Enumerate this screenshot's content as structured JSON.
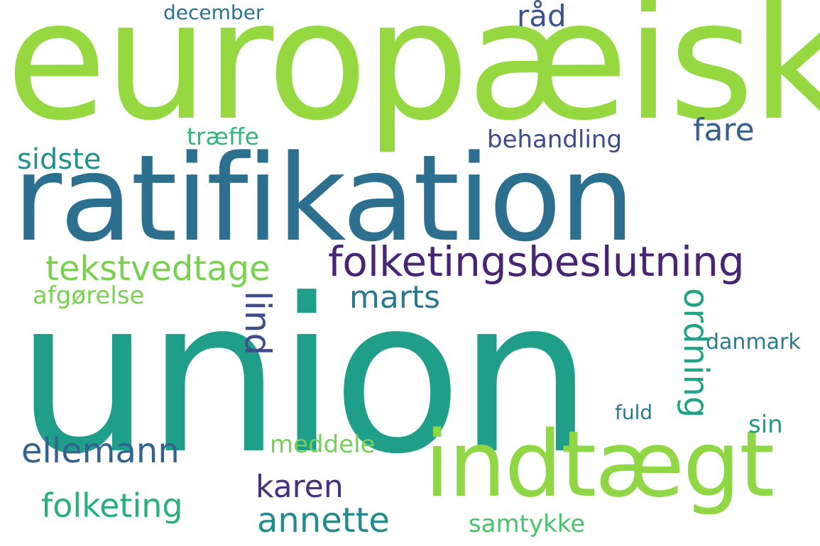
{
  "words": [
    {
      "text": "europæisk",
      "color": "#95d840"
    },
    {
      "text": "ratifikation",
      "color": "#2d6f8e"
    },
    {
      "text": "union",
      "color": "#1f9e89"
    },
    {
      "text": "indtægt",
      "color": "#8fd744"
    },
    {
      "text": "folketingsbeslutning",
      "color": "#482475"
    },
    {
      "text": "tekstvedtage",
      "color": "#7ad151"
    },
    {
      "text": "ellemann",
      "color": "#33638d"
    },
    {
      "text": "folketing",
      "color": "#29af7f"
    },
    {
      "text": "annette",
      "color": "#238a8d"
    },
    {
      "text": "karen",
      "color": "#45327f"
    },
    {
      "text": "marts",
      "color": "#2a788e"
    },
    {
      "text": "fare",
      "color": "#355f8d"
    },
    {
      "text": "sidste",
      "color": "#21918c"
    },
    {
      "text": "træffe",
      "color": "#34b679"
    },
    {
      "text": "behandling",
      "color": "#3e4a89"
    },
    {
      "text": "råd",
      "color": "#3b528b"
    },
    {
      "text": "december",
      "color": "#2c728e"
    },
    {
      "text": "afgørelse",
      "color": "#7ad151"
    },
    {
      "text": "meddele",
      "color": "#73d055"
    },
    {
      "text": "samtykke",
      "color": "#4ac16d"
    },
    {
      "text": "danmark",
      "color": "#297b8e"
    },
    {
      "text": "fuld",
      "color": "#2a788e"
    },
    {
      "text": "sin",
      "color": "#1f9a8a"
    },
    {
      "text": "lind",
      "color": "#3e4c8a"
    },
    {
      "text": "ordning",
      "color": "#20a386"
    }
  ]
}
